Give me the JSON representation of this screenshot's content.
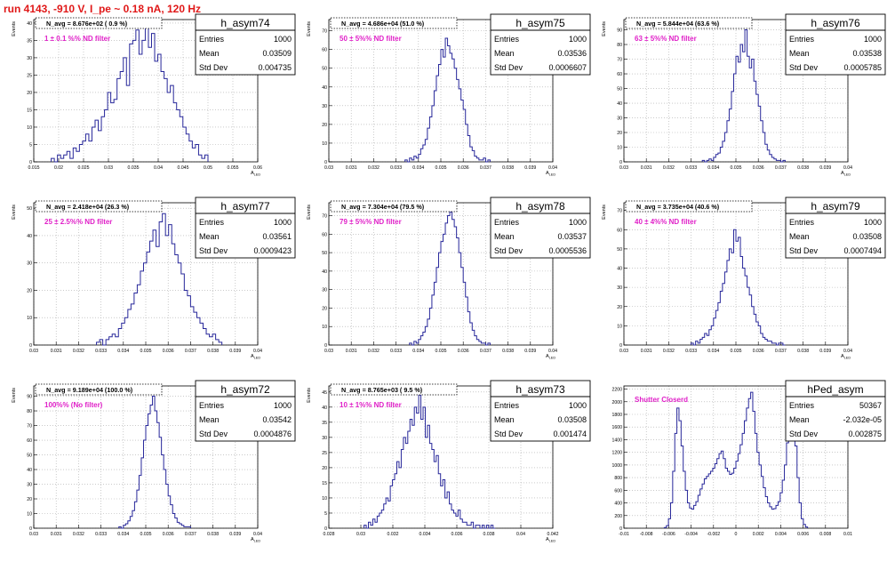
{
  "canvas_title": "run 4143,  -910 V, I_pe ~ 0.18 nA, 120 Hz",
  "stats_labels": {
    "entries": "Entries",
    "mean": "Mean",
    "stddev": "Std Dev"
  },
  "colors": {
    "hist_line": "#27279a",
    "annotation": "#e020c8",
    "title": "#e01818",
    "grid": "#aaaaaa"
  },
  "chart_data": [
    {
      "type": "histogram",
      "name": "h_asym74",
      "navg": "N_avg = 8.676e+02 ( 0.9 %)",
      "annotation": "1 ± 0.1 %% ND filter",
      "stats": {
        "entries": "1000",
        "mean": "0.03509",
        "stddev": "0.004735"
      },
      "xlabel": "A_LED",
      "ylabel": "Events",
      "xlim": [
        0.015,
        0.06
      ],
      "ylim": [
        0,
        41
      ],
      "xticks": [
        0.015,
        0.02,
        0.025,
        0.03,
        0.035,
        0.04,
        0.045,
        0.05,
        0.055,
        0.06
      ],
      "xtick_labels": [
        "0.015",
        "0.02",
        "0.025",
        "0.03",
        "0.035",
        "0.04",
        "0.045",
        "0.05",
        "0.055",
        "0.06"
      ],
      "yticks": [
        0,
        5,
        10,
        15,
        20,
        25,
        30,
        35,
        40
      ],
      "ytick_labels": [
        "0",
        "5",
        "10",
        "15",
        "20",
        "25",
        "30",
        "35",
        "40"
      ],
      "bin_edges": [
        0.0185,
        0.05
      ],
      "counts": [
        1,
        0,
        2,
        1,
        2,
        3,
        1,
        4,
        3,
        5,
        6,
        8,
        6,
        10,
        12,
        9,
        13,
        15,
        20,
        17,
        18,
        24,
        26,
        30,
        22,
        34,
        35,
        38,
        31,
        35,
        40,
        33,
        37,
        29,
        31,
        26,
        24,
        20,
        22,
        17,
        15,
        13,
        10,
        8,
        6,
        4,
        5,
        2,
        1,
        2
      ]
    },
    {
      "type": "histogram",
      "name": "h_asym75",
      "navg": "N_avg = 4.686e+04 (51.0 %)",
      "annotation": "50 ± 5%% ND filter",
      "stats": {
        "entries": "1000",
        "mean": "0.03536",
        "stddev": "0.0006607"
      },
      "xlabel": "A_LED",
      "ylabel": "Events",
      "xlim": [
        0.03,
        0.04
      ],
      "ylim": [
        0,
        76
      ],
      "xticks": [
        0.03,
        0.031,
        0.032,
        0.033,
        0.034,
        0.035,
        0.036,
        0.037,
        0.038,
        0.039,
        0.04
      ],
      "xtick_labels": [
        "0.03",
        "0.031",
        "0.032",
        "0.033",
        "0.034",
        "0.035",
        "0.036",
        "0.037",
        "0.038",
        "0.039",
        "0.04"
      ],
      "yticks": [
        0,
        10,
        20,
        30,
        40,
        50,
        60,
        70
      ],
      "ytick_labels": [
        "0",
        "10",
        "20",
        "30",
        "40",
        "50",
        "60",
        "70"
      ],
      "bin_edges": [
        0.0334,
        0.0372
      ],
      "counts": [
        1,
        0,
        2,
        1,
        3,
        2,
        4,
        7,
        9,
        12,
        18,
        24,
        30,
        38,
        46,
        52,
        60,
        56,
        66,
        62,
        58,
        55,
        50,
        44,
        39,
        33,
        28,
        20,
        14,
        8,
        6,
        3,
        2,
        1,
        1,
        2,
        0,
        1
      ]
    },
    {
      "type": "histogram",
      "name": "h_asym76",
      "navg": "N_avg = 5.844e+04 (63.6 %)",
      "annotation": "63 ± 5%% ND filter",
      "stats": {
        "entries": "1000",
        "mean": "0.03538",
        "stddev": "0.0005785"
      },
      "xlabel": "A_LED",
      "ylabel": "Events",
      "xlim": [
        0.03,
        0.04
      ],
      "ylim": [
        0,
        97
      ],
      "xticks": [
        0.03,
        0.031,
        0.032,
        0.033,
        0.034,
        0.035,
        0.036,
        0.037,
        0.038,
        0.039,
        0.04
      ],
      "xtick_labels": [
        "0.03",
        "0.031",
        "0.032",
        "0.033",
        "0.034",
        "0.035",
        "0.036",
        "0.037",
        "0.038",
        "0.039",
        "0.04"
      ],
      "yticks": [
        0,
        10,
        20,
        30,
        40,
        50,
        60,
        70,
        80,
        90
      ],
      "ytick_labels": [
        "0",
        "10",
        "20",
        "30",
        "40",
        "50",
        "60",
        "70",
        "80",
        "90"
      ],
      "bin_edges": [
        0.0335,
        0.0372
      ],
      "counts": [
        1,
        0,
        1,
        2,
        1,
        3,
        5,
        6,
        10,
        14,
        20,
        28,
        36,
        48,
        60,
        72,
        68,
        80,
        75,
        90,
        72,
        64,
        70,
        55,
        46,
        38,
        28,
        20,
        12,
        8,
        5,
        3,
        2,
        1,
        1,
        0,
        1
      ]
    },
    {
      "type": "histogram",
      "name": "h_asym77",
      "navg": "N_avg = 2.418e+04 (26.3 %)",
      "annotation": "25 ± 2.5%% ND filter",
      "stats": {
        "entries": "1000",
        "mean": "0.03561",
        "stddev": "0.0009423"
      },
      "xlabel": "A_LED",
      "ylabel": "Events",
      "xlim": [
        0.03,
        0.04
      ],
      "ylim": [
        0,
        52
      ],
      "xticks": [
        0.03,
        0.031,
        0.032,
        0.033,
        0.034,
        0.035,
        0.036,
        0.037,
        0.038,
        0.039,
        0.04
      ],
      "xtick_labels": [
        "0.03",
        "0.031",
        "0.032",
        "0.033",
        "0.034",
        "0.035",
        "0.036",
        "0.037",
        "0.038",
        "0.039",
        "0.04"
      ],
      "yticks": [
        0,
        10,
        20,
        30,
        40,
        50
      ],
      "ytick_labels": [
        "0",
        "10",
        "20",
        "30",
        "40",
        "50"
      ],
      "bin_edges": [
        0.0328,
        0.0384
      ],
      "counts": [
        1,
        2,
        0,
        2,
        3,
        4,
        3,
        6,
        8,
        10,
        13,
        15,
        19,
        22,
        27,
        30,
        34,
        38,
        42,
        36,
        45,
        48,
        40,
        44,
        37,
        33,
        30,
        26,
        20,
        18,
        14,
        12,
        10,
        8,
        6,
        4,
        3,
        4,
        2,
        1
      ]
    },
    {
      "type": "histogram",
      "name": "h_asym78",
      "navg": "N_avg = 7.304e+04 (79.5 %)",
      "annotation": "79 ± 5%% ND filter",
      "stats": {
        "entries": "1000",
        "mean": "0.03537",
        "stddev": "0.0005536"
      },
      "xlabel": "A_LED",
      "ylabel": "Events",
      "xlim": [
        0.03,
        0.04
      ],
      "ylim": [
        0,
        77
      ],
      "xticks": [
        0.03,
        0.031,
        0.032,
        0.033,
        0.034,
        0.035,
        0.036,
        0.037,
        0.038,
        0.039,
        0.04
      ],
      "xtick_labels": [
        "0.03",
        "0.031",
        "0.032",
        "0.033",
        "0.034",
        "0.035",
        "0.036",
        "0.037",
        "0.038",
        "0.039",
        "0.04"
      ],
      "yticks": [
        0,
        10,
        20,
        30,
        40,
        50,
        60,
        70
      ],
      "ytick_labels": [
        "0",
        "10",
        "20",
        "30",
        "40",
        "50",
        "60",
        "70"
      ],
      "bin_edges": [
        0.0336,
        0.0372
      ],
      "counts": [
        1,
        0,
        2,
        1,
        3,
        5,
        7,
        10,
        14,
        20,
        27,
        34,
        42,
        50,
        56,
        60,
        66,
        70,
        72,
        68,
        64,
        58,
        50,
        42,
        34,
        26,
        18,
        12,
        8,
        5,
        3,
        2,
        1,
        1,
        0,
        1
      ]
    },
    {
      "type": "histogram",
      "name": "h_asym79",
      "navg": "N_avg = 3.735e+04 (40.6 %)",
      "annotation": "40 ± 4%% ND filter",
      "stats": {
        "entries": "1000",
        "mean": "0.03508",
        "stddev": "0.0007494"
      },
      "xlabel": "A_LED",
      "ylabel": "Events",
      "xlim": [
        0.03,
        0.04
      ],
      "ylim": [
        0,
        74
      ],
      "xticks": [
        0.03,
        0.031,
        0.032,
        0.033,
        0.034,
        0.035,
        0.036,
        0.037,
        0.038,
        0.039,
        0.04
      ],
      "xtick_labels": [
        "0.03",
        "0.031",
        "0.032",
        "0.033",
        "0.034",
        "0.035",
        "0.036",
        "0.037",
        "0.038",
        "0.039",
        "0.04"
      ],
      "yticks": [
        0,
        10,
        20,
        30,
        40,
        50,
        60,
        70
      ],
      "ytick_labels": [
        "0",
        "10",
        "20",
        "30",
        "40",
        "50",
        "60",
        "70"
      ],
      "bin_edges": [
        0.033,
        0.0372
      ],
      "counts": [
        1,
        0,
        2,
        1,
        3,
        4,
        6,
        5,
        8,
        10,
        14,
        18,
        22,
        28,
        32,
        38,
        44,
        50,
        48,
        60,
        54,
        56,
        46,
        40,
        36,
        30,
        26,
        20,
        16,
        12,
        10,
        6,
        4,
        3,
        2,
        2,
        1,
        1,
        0,
        1,
        1,
        0
      ]
    },
    {
      "type": "histogram",
      "name": "h_asym72",
      "navg": "N_avg = 9.189e+04 (100.0 %)",
      "annotation": "100%% (No filter)",
      "stats": {
        "entries": "1000",
        "mean": "0.03542",
        "stddev": "0.0004876"
      },
      "xlabel": "A_LED",
      "ylabel": "Events",
      "xlim": [
        0.03,
        0.04
      ],
      "ylim": [
        0,
        97
      ],
      "xticks": [
        0.03,
        0.031,
        0.032,
        0.033,
        0.034,
        0.035,
        0.036,
        0.037,
        0.038,
        0.039,
        0.04
      ],
      "xtick_labels": [
        "0.03",
        "0.031",
        "0.032",
        "0.033",
        "0.034",
        "0.035",
        "0.036",
        "0.037",
        "0.038",
        "0.039",
        "0.04"
      ],
      "yticks": [
        0,
        10,
        20,
        30,
        40,
        50,
        60,
        70,
        80,
        90
      ],
      "ytick_labels": [
        "0",
        "10",
        "20",
        "30",
        "40",
        "50",
        "60",
        "70",
        "80",
        "90"
      ],
      "bin_edges": [
        0.0338,
        0.037
      ],
      "counts": [
        1,
        0,
        2,
        3,
        5,
        8,
        12,
        18,
        26,
        36,
        48,
        60,
        70,
        78,
        84,
        90,
        80,
        72,
        62,
        50,
        40,
        30,
        22,
        16,
        10,
        7,
        4,
        3,
        2,
        1,
        1,
        1
      ]
    },
    {
      "type": "histogram",
      "name": "h_asym73",
      "navg": "N_avg = 8.765e+03 ( 9.5 %)",
      "annotation": "10 ± 1%% ND filter",
      "stats": {
        "entries": "1000",
        "mean": "0.03508",
        "stddev": "0.001474"
      },
      "xlabel": "A_LED",
      "ylabel": "Events",
      "xlim": [
        0.028,
        0.042
      ],
      "ylim": [
        0,
        47
      ],
      "xticks": [
        0.028,
        0.03,
        0.032,
        0.034,
        0.036,
        0.038,
        0.04,
        0.042
      ],
      "xtick_labels": [
        "0.028",
        "0.03",
        "0.032",
        "0.034",
        "0.036",
        "0.038",
        "0.04",
        "0.042"
      ],
      "yticks": [
        0,
        5,
        10,
        15,
        20,
        25,
        30,
        35,
        40,
        45
      ],
      "ytick_labels": [
        "0",
        "5",
        "10",
        "15",
        "20",
        "25",
        "30",
        "35",
        "40",
        "45"
      ],
      "bin_edges": [
        0.0302,
        0.0384
      ],
      "counts": [
        1,
        0,
        2,
        1,
        3,
        2,
        4,
        5,
        6,
        8,
        10,
        9,
        14,
        16,
        18,
        22,
        20,
        26,
        30,
        28,
        32,
        36,
        34,
        40,
        38,
        44,
        36,
        40,
        30,
        34,
        28,
        26,
        22,
        24,
        18,
        14,
        16,
        10,
        12,
        8,
        6,
        5,
        4,
        6,
        3,
        2,
        2,
        1,
        1,
        2,
        0,
        1,
        1,
        0,
        1,
        0,
        1,
        0,
        1,
        0
      ]
    },
    {
      "type": "histogram",
      "name": "hPed_asym",
      "navg": "",
      "annotation": "Shutter Closerd",
      "stats": {
        "entries": "50367",
        "mean": "-2.032e-05",
        "stddev": "0.002875"
      },
      "xlabel": "",
      "ylabel": "",
      "xlim": [
        -0.01,
        0.01
      ],
      "ylim": [
        0,
        2250
      ],
      "xticks": [
        -0.01,
        -0.008,
        -0.006,
        -0.004,
        -0.002,
        0,
        0.002,
        0.004,
        0.006,
        0.008,
        0.01
      ],
      "xtick_labels": [
        "-0.01",
        "-0.008",
        "-0.006",
        "-0.004",
        "-0.002",
        "0",
        "0.002",
        "0.004",
        "0.006",
        "0.008",
        "0.01"
      ],
      "yticks": [
        0,
        200,
        400,
        600,
        800,
        1000,
        1200,
        1400,
        1600,
        1800,
        2000,
        2200
      ],
      "ytick_labels": [
        "0",
        "200",
        "400",
        "600",
        "800",
        "1000",
        "1200",
        "1400",
        "1600",
        "1800",
        "2000",
        "2200"
      ],
      "bin_edges": [
        -0.0064,
        0.0064
      ],
      "counts": [
        10,
        40,
        150,
        400,
        900,
        1500,
        1900,
        1700,
        1300,
        900,
        600,
        400,
        320,
        300,
        360,
        420,
        520,
        620,
        700,
        780,
        820,
        860,
        900,
        950,
        1020,
        1100,
        1180,
        1220,
        1100,
        950,
        900,
        850,
        870,
        950,
        1060,
        1180,
        1320,
        1500,
        1700,
        1900,
        2050,
        2150,
        1850,
        1500,
        1200,
        1000,
        820,
        640,
        500,
        400,
        340,
        300,
        310,
        360,
        420,
        560,
        760,
        1000,
        1350,
        1650,
        1920,
        1700,
        1300,
        800,
        400,
        150,
        60,
        20
      ]
    }
  ]
}
